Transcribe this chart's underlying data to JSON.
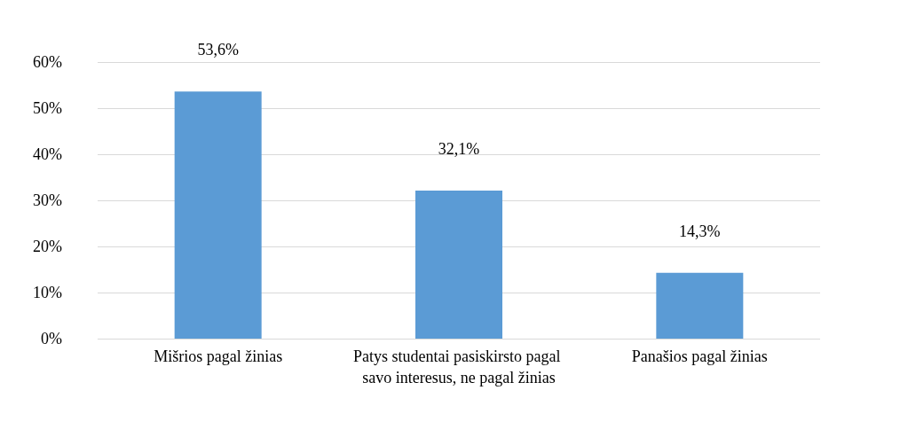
{
  "chart_data": {
    "type": "bar",
    "categories": [
      "Mišrios pagal žinias",
      "Patys studentai pasiskirsto pagal savo interesus, ne pagal žinias",
      "Panašios pagal žinias"
    ],
    "values": [
      53.6,
      32.1,
      14.3
    ],
    "value_labels": [
      "53,6%",
      "32,1%",
      "14,3%"
    ],
    "color": "#5b9bd5",
    "ylim": [
      0,
      60
    ],
    "yticks": [
      {
        "value": 0,
        "label": "0%"
      },
      {
        "value": 10,
        "label": "10%"
      },
      {
        "value": 20,
        "label": "20%"
      },
      {
        "value": 30,
        "label": "30%"
      },
      {
        "value": 40,
        "label": "40%"
      },
      {
        "value": 50,
        "label": "50%"
      },
      {
        "value": 60,
        "label": "60%"
      }
    ],
    "grid": "y"
  }
}
